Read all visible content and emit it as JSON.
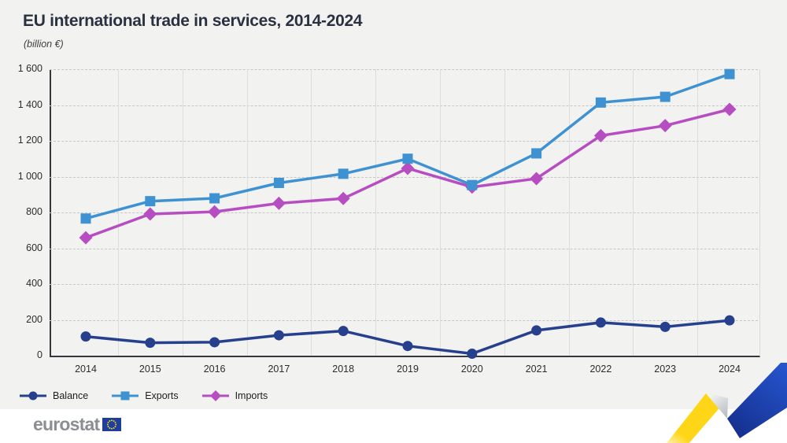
{
  "chart_data": {
    "type": "line",
    "title": "EU international trade in services, 2014-2024",
    "subtitle": "(billion €)",
    "categories": [
      "2014",
      "2015",
      "2016",
      "2017",
      "2018",
      "2019",
      "2020",
      "2021",
      "2022",
      "2023",
      "2024"
    ],
    "series": [
      {
        "name": "Balance",
        "marker": "circle",
        "color": "#27408E",
        "values": [
          107,
          72,
          75,
          114,
          138,
          54,
          11,
          141,
          185,
          161,
          197
        ]
      },
      {
        "name": "Exports",
        "marker": "square",
        "color": "#3F92D2",
        "values": [
          766,
          863,
          879,
          965,
          1016,
          1100,
          953,
          1130,
          1414,
          1446,
          1573
        ]
      },
      {
        "name": "Imports",
        "marker": "diamond",
        "color": "#B64DC0",
        "values": [
          659,
          791,
          804,
          851,
          878,
          1046,
          942,
          989,
          1229,
          1285,
          1376
        ]
      }
    ],
    "ylim": [
      0,
      1600
    ],
    "ytick_step": 200,
    "ytick_labels": [
      "0",
      "200",
      "400",
      "600",
      "800",
      "1 000",
      "1 200",
      "1 400",
      "1 600"
    ],
    "grid": {
      "horizontal": "dashed",
      "vertical": "solid"
    },
    "legend_position": "bottom-left",
    "legend": [
      "Balance",
      "Exports",
      "Imports"
    ]
  },
  "branding": {
    "logo_text": "eurostat",
    "flag_blue": "#1E3E9C",
    "flag_star_color": "#FFD617"
  },
  "decoration": {
    "ribbon_colors": {
      "yellow": "#FFD617",
      "silver": "#C7CBD1",
      "blue": "#1E44B8"
    }
  }
}
